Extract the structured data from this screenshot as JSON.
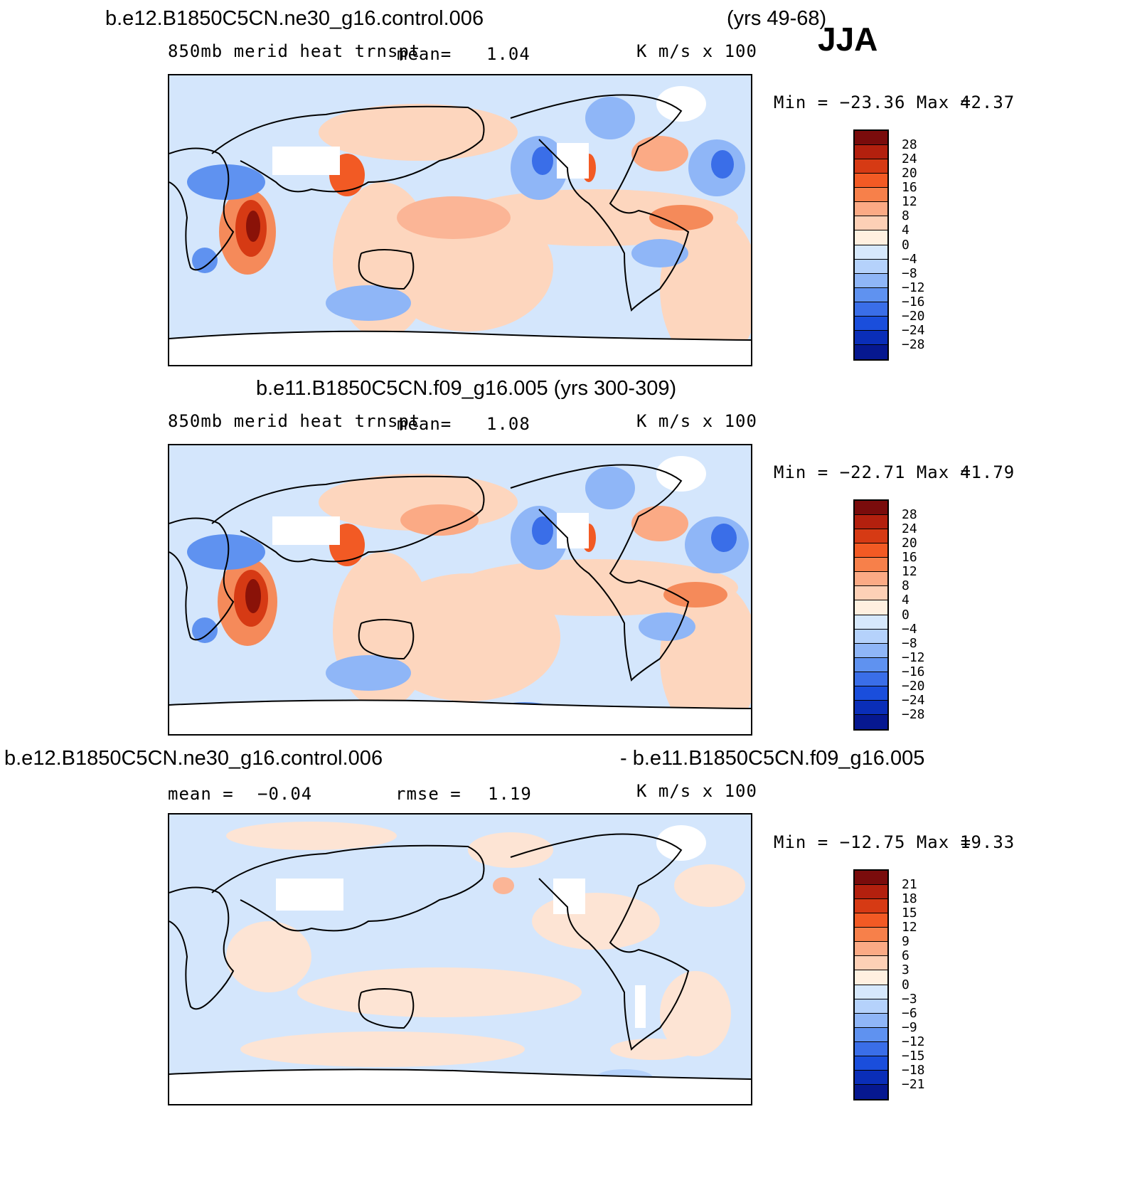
{
  "season": "JJA",
  "panel1": {
    "case": "b.e12.B1850C5CN.ne30_g16.control.006",
    "years": "(yrs 49-68)",
    "field": "850mb merid heat trnspt",
    "mean_label": "mean=",
    "mean_value": "1.04",
    "units": "K m/s x 100",
    "minmax_text": "Min = −23.36 Max =",
    "max_value": "42.37"
  },
  "panel2": {
    "title": "b.e11.B1850C5CN.f09_g16.005 (yrs 300-309)",
    "field": "850mb merid heat trnspt",
    "mean_label": "mean=",
    "mean_value": "1.08",
    "units": "K m/s x 100",
    "minmax_text": "Min = −22.71 Max =",
    "max_value": "41.79"
  },
  "panel3": {
    "case_a": "b.e12.B1850C5CN.ne30_g16.control.006",
    "case_b": "- b.e11.B1850C5CN.f09_g16.005",
    "mean_label": "mean =",
    "mean_value": "−0.04",
    "rmse_label": "rmse =",
    "rmse_value": "1.19",
    "units": "K m/s x 100",
    "minmax_text": "Min = −12.75 Max =",
    "max_value": "19.33"
  },
  "colorbar_levels": [
    "28",
    "24",
    "20",
    "16",
    "12",
    "8",
    "4",
    "0",
    "−4",
    "−8",
    "−12",
    "−16",
    "−20",
    "−24",
    "−28"
  ],
  "colorbar_diff_levels": [
    "21",
    "18",
    "15",
    "12",
    "9",
    "6",
    "3",
    "0",
    "−3",
    "−6",
    "−9",
    "−12",
    "−15",
    "−18",
    "−21"
  ],
  "colors": [
    "#7a0c0c",
    "#b3200e",
    "#d63a14",
    "#f25a24",
    "#f7804a",
    "#fbaa85",
    "#fdd0b6",
    "#fff0e0",
    "#d6e8fc",
    "#b5d2fb",
    "#8fb6f7",
    "#5f92f0",
    "#3a6ee8",
    "#1a4edc",
    "#0a2eb8",
    "#061890"
  ]
}
